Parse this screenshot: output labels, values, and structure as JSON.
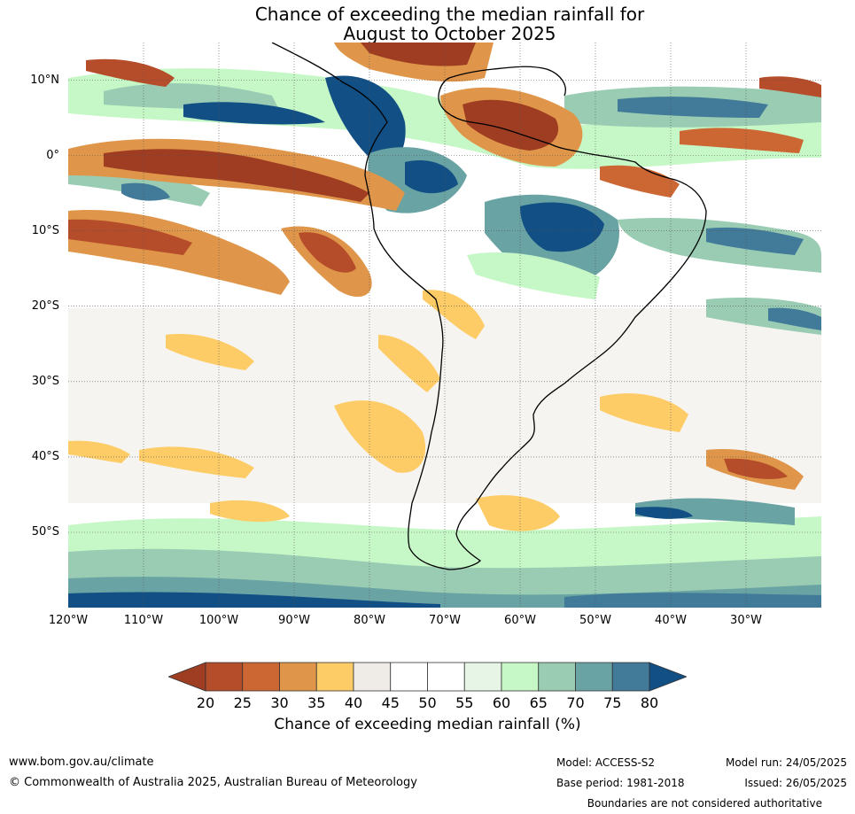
{
  "title_line1": "Chance of exceeding the median rainfall for",
  "title_line2": "August to October 2025",
  "map": {
    "lat_labels": [
      {
        "text": "10°N",
        "lat": 10
      },
      {
        "text": "0°",
        "lat": 0
      },
      {
        "text": "10°S",
        "lat": -10
      },
      {
        "text": "20°S",
        "lat": -20
      },
      {
        "text": "30°S",
        "lat": -30
      },
      {
        "text": "40°S",
        "lat": -40
      },
      {
        "text": "50°S",
        "lat": -50
      }
    ],
    "lon_labels": [
      {
        "text": "120°W",
        "lon": -120
      },
      {
        "text": "110°W",
        "lon": -110
      },
      {
        "text": "100°W",
        "lon": -100
      },
      {
        "text": "90°W",
        "lon": -90
      },
      {
        "text": "80°W",
        "lon": -80
      },
      {
        "text": "70°W",
        "lon": -70
      },
      {
        "text": "60°W",
        "lon": -60
      },
      {
        "text": "50°W",
        "lon": -50
      },
      {
        "text": "40°W",
        "lon": -40
      },
      {
        "text": "30°W",
        "lon": -30
      }
    ],
    "lon_range": [
      -120,
      -20
    ],
    "lat_range": [
      -60,
      15
    ],
    "grid": true
  },
  "legend": {
    "ticks": [
      "20",
      "25",
      "30",
      "35",
      "40",
      "45",
      "50",
      "55",
      "60",
      "65",
      "70",
      "75",
      "80"
    ],
    "colors": [
      "#9e3d22",
      "#b64d2a",
      "#cc6633",
      "#e0964a",
      "#fdcc66",
      "#efece7",
      "#ffffff",
      "#ffffff",
      "#e7f5e7",
      "#c6f7c6",
      "#99ccb3",
      "#6aa3a3",
      "#427a99",
      "#124f85"
    ],
    "label": "Chance of exceeding median rainfall (%)"
  },
  "footer": {
    "website": "www.bom.gov.au/climate",
    "copyright": "© Commonwealth of Australia 2025, Australian Bureau of Meteorology",
    "model": "Model: ACCESS-S2",
    "base_period": "Base period: 1981-2018",
    "model_run": "Model run: 24/05/2025",
    "issued": "Issued: 26/05/2025",
    "boundaries": "Boundaries are not considered authoritative"
  }
}
